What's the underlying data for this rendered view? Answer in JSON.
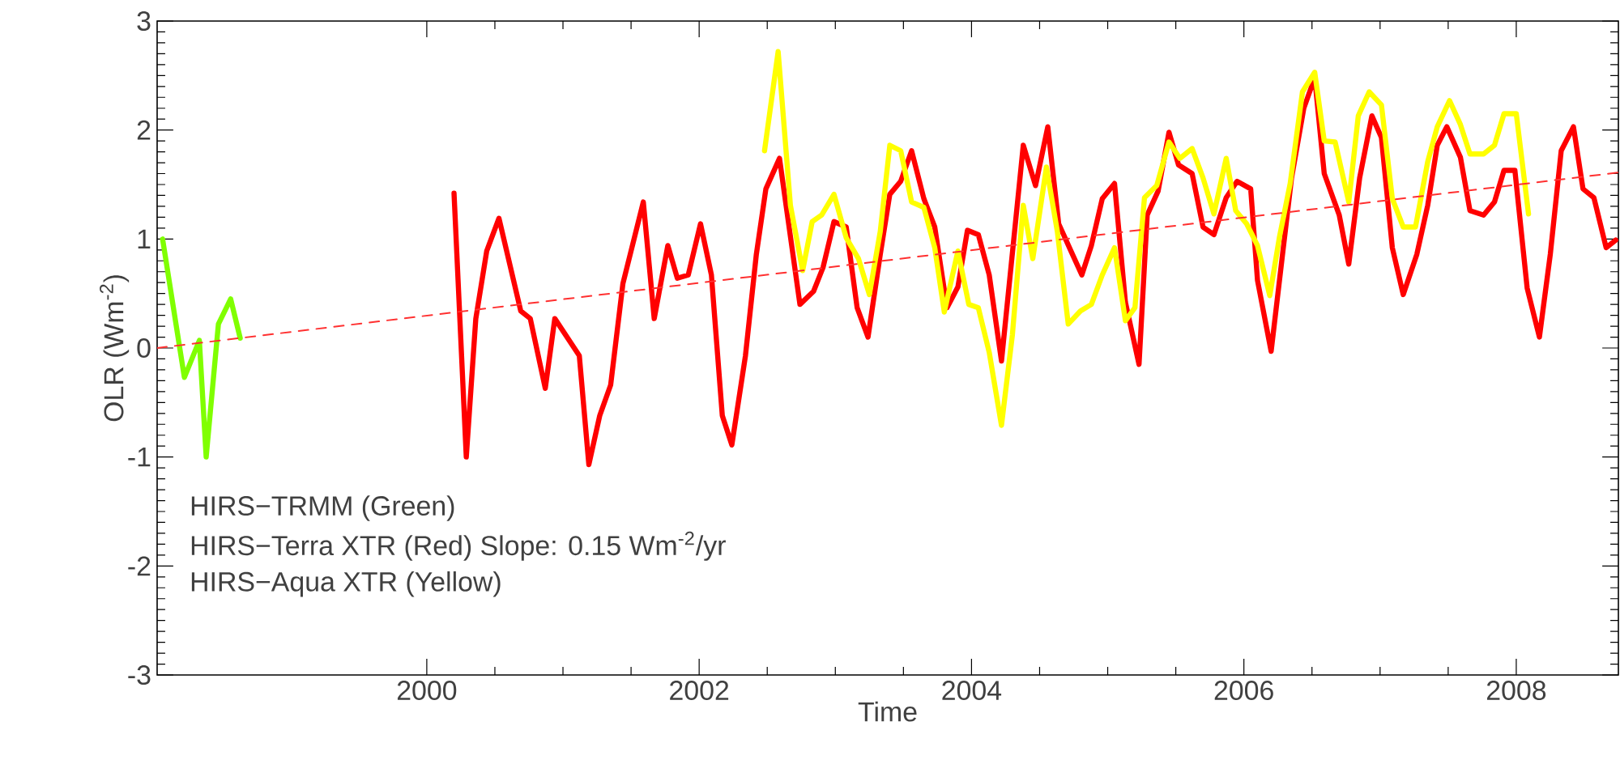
{
  "chart_data": {
    "type": "line",
    "xlabel": "Time",
    "ylabel": "OLR (Wm$^{-2}$)",
    "xlim": [
      1998.02,
      2008.75
    ],
    "ylim": [
      -3,
      3
    ],
    "xticks": [
      2000,
      2002,
      2004,
      2006,
      2008
    ],
    "yticks": [
      -3,
      -2,
      -1,
      0,
      1,
      2,
      3
    ],
    "annotations": [
      "HIRS−TRMM (Green)",
      "HIRS−Terra XTR (Red) Slope: 0.15 Wm$^{-2}$/yr",
      "HIRS−Aqua XTR (Yellow)"
    ],
    "series": [
      {
        "color": "#80ff00",
        "x": [
          1998.06,
          1998.22,
          1998.33,
          1998.38,
          1998.47,
          1998.56,
          1998.63
        ],
        "values": [
          1.0,
          -0.27,
          0.07,
          -1.0,
          0.22,
          0.45,
          0.09
        ]
      },
      {
        "color": "#ff0000",
        "x": [
          2000.2,
          2000.29,
          2000.36,
          2000.44,
          2000.53,
          2000.69,
          2000.76,
          2000.87,
          2000.94,
          2001.12,
          2001.19,
          2001.27,
          2001.35,
          2001.44,
          2001.59,
          2001.67,
          2001.77,
          2001.84,
          2001.92,
          2002.01,
          2002.09,
          2002.17,
          2002.24,
          2002.34,
          2002.42,
          2002.49,
          2002.59,
          2002.74,
          2002.84,
          2002.91,
          2002.99,
          2003.08,
          2003.16,
          2003.24,
          2003.33,
          2003.4,
          2003.48,
          2003.56,
          2003.65,
          2003.73,
          2003.82,
          2003.9,
          2003.97,
          2004.05,
          2004.13,
          2004.22,
          2004.38,
          2004.47,
          2004.56,
          2004.64,
          2004.73,
          2004.81,
          2004.88,
          2004.96,
          2005.05,
          2005.13,
          2005.23,
          2005.29,
          2005.37,
          2005.45,
          2005.52,
          2005.62,
          2005.7,
          2005.78,
          2005.87,
          2005.95,
          2006.05,
          2006.1,
          2006.2,
          2006.28,
          2006.35,
          2006.44,
          2006.52,
          2006.59,
          2006.7,
          2006.77,
          2006.85,
          2006.94,
          2007.01,
          2007.09,
          2007.17,
          2007.27,
          2007.35,
          2007.42,
          2007.49,
          2007.59,
          2007.66,
          2007.76,
          2007.84,
          2007.91,
          2007.99,
          2008.08,
          2008.17,
          2008.25,
          2008.33,
          2008.42,
          2008.49,
          2008.57,
          2008.66,
          2008.73
        ],
        "values": [
          1.42,
          -1.0,
          0.27,
          0.89,
          1.19,
          0.34,
          0.27,
          -0.37,
          0.27,
          -0.07,
          -1.07,
          -0.62,
          -0.34,
          0.59,
          1.34,
          0.27,
          0.94,
          0.64,
          0.67,
          1.14,
          0.67,
          -0.62,
          -0.89,
          -0.07,
          0.86,
          1.46,
          1.74,
          0.4,
          0.52,
          0.74,
          1.16,
          1.11,
          0.37,
          0.1,
          0.86,
          1.41,
          1.53,
          1.81,
          1.37,
          1.11,
          0.37,
          0.56,
          1.08,
          1.04,
          0.67,
          -0.12,
          1.86,
          1.49,
          2.03,
          1.14,
          0.89,
          0.67,
          0.94,
          1.37,
          1.51,
          0.42,
          -0.15,
          1.22,
          1.44,
          1.98,
          1.68,
          1.6,
          1.11,
          1.04,
          1.38,
          1.53,
          1.46,
          0.62,
          -0.03,
          0.82,
          1.56,
          2.2,
          2.48,
          1.6,
          1.22,
          0.77,
          1.56,
          2.13,
          1.93,
          0.92,
          0.49,
          0.86,
          1.31,
          1.86,
          2.03,
          1.75,
          1.26,
          1.22,
          1.34,
          1.63,
          1.63,
          0.55,
          0.1,
          0.86,
          1.81,
          2.03,
          1.46,
          1.38,
          0.92,
          0.99
        ]
      },
      {
        "color": "#ffff00",
        "x": [
          2002.48,
          2002.58,
          2002.67,
          2002.76,
          2002.83,
          2002.9,
          2002.99,
          2003.08,
          2003.17,
          2003.25,
          2003.33,
          2003.4,
          2003.48,
          2003.56,
          2003.65,
          2003.73,
          2003.8,
          2003.9,
          2003.98,
          2004.05,
          2004.13,
          2004.22,
          2004.3,
          2004.38,
          2004.45,
          2004.55,
          2004.63,
          2004.71,
          2004.8,
          2004.88,
          2004.96,
          2005.05,
          2005.13,
          2005.2,
          2005.27,
          2005.36,
          2005.45,
          2005.53,
          2005.62,
          2005.7,
          2005.78,
          2005.87,
          2005.94,
          2006.02,
          2006.1,
          2006.19,
          2006.26,
          2006.34,
          2006.43,
          2006.52,
          2006.59,
          2006.67,
          2006.77,
          2006.84,
          2006.92,
          2007.01,
          2007.09,
          2007.17,
          2007.26,
          2007.35,
          2007.42,
          2007.51,
          2007.59,
          2007.66,
          2007.76,
          2007.84,
          2007.91,
          2008.0,
          2008.09
        ],
        "values": [
          1.81,
          2.72,
          1.31,
          0.71,
          1.16,
          1.22,
          1.41,
          1.01,
          0.82,
          0.49,
          1.07,
          1.86,
          1.81,
          1.34,
          1.29,
          0.92,
          0.33,
          0.89,
          0.4,
          0.37,
          -0.04,
          -0.71,
          0.12,
          1.31,
          0.82,
          1.66,
          1.07,
          0.22,
          0.34,
          0.4,
          0.67,
          0.92,
          0.25,
          0.37,
          1.38,
          1.49,
          1.89,
          1.74,
          1.83,
          1.56,
          1.23,
          1.74,
          1.26,
          1.14,
          0.94,
          0.48,
          1.01,
          1.51,
          2.35,
          2.53,
          1.9,
          1.89,
          1.34,
          2.13,
          2.35,
          2.23,
          1.37,
          1.11,
          1.11,
          1.71,
          2.03,
          2.27,
          2.05,
          1.78,
          1.78,
          1.86,
          2.15,
          2.15,
          1.23
        ]
      },
      {
        "color": "#ff3030",
        "line_style": "dashed",
        "x": [
          1998.02,
          2008.75
        ],
        "values": [
          0.0,
          1.61
        ]
      }
    ]
  }
}
